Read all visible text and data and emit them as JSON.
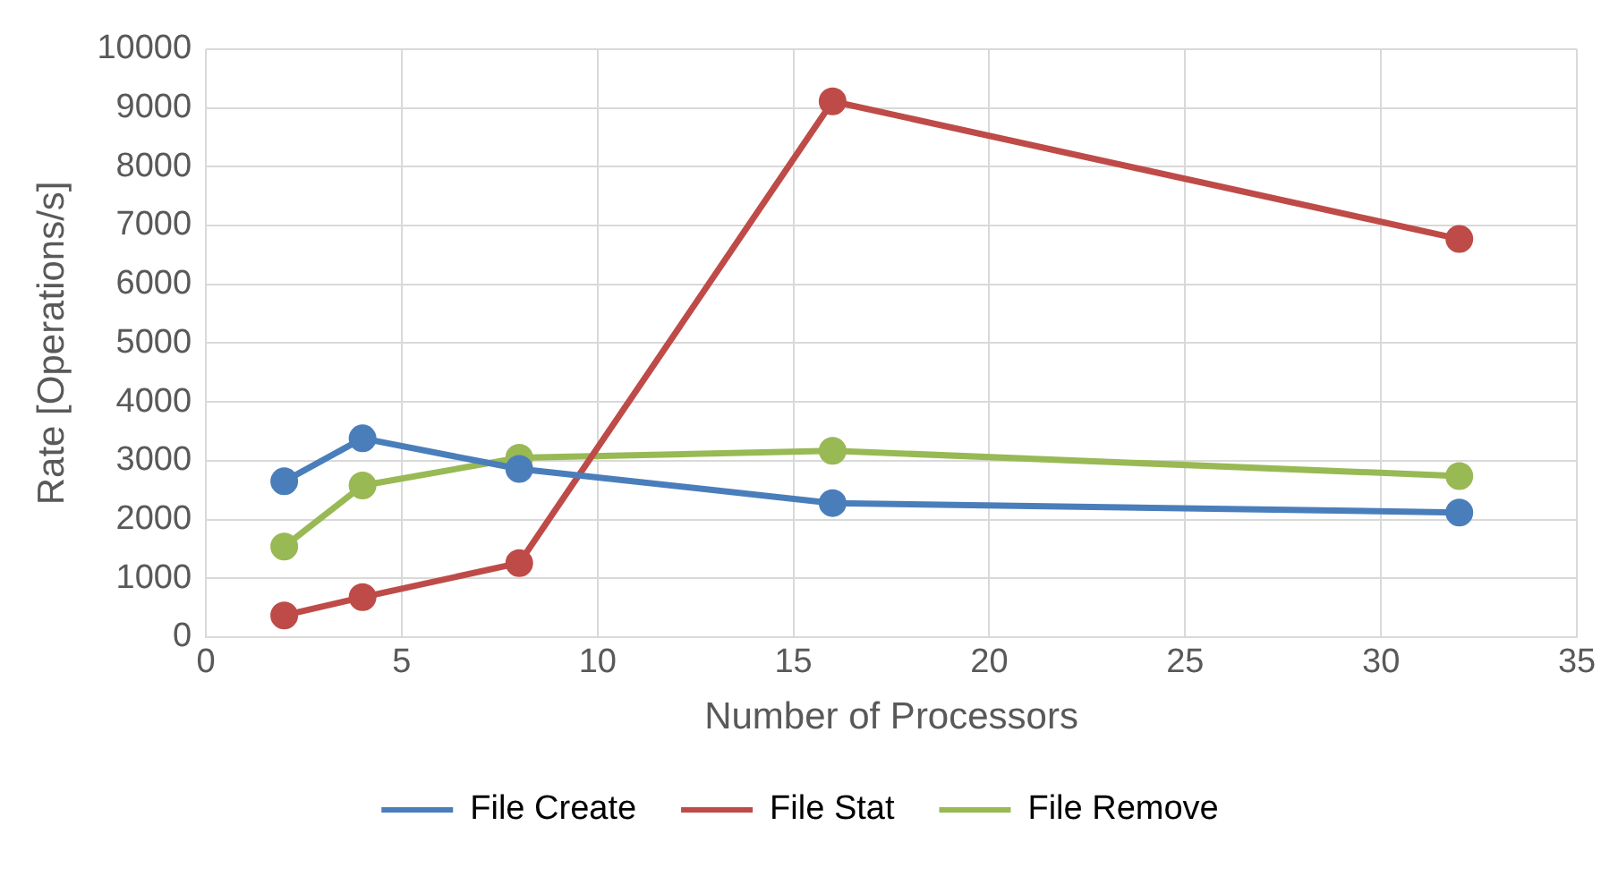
{
  "chart_data": {
    "type": "line",
    "xlabel": "Number of Processors",
    "ylabel": "Rate [Operations/s]",
    "x": [
      2,
      4,
      8,
      16,
      32
    ],
    "series": [
      {
        "name": "File Create",
        "color": "#4a7ebb",
        "values": [
          2650,
          3380,
          2860,
          2280,
          2120
        ]
      },
      {
        "name": "File Stat",
        "color": "#be4b48",
        "values": [
          370,
          680,
          1260,
          9110,
          6770
        ]
      },
      {
        "name": "File Remove",
        "color": "#98b954",
        "values": [
          1540,
          2580,
          3050,
          3170,
          2740
        ]
      }
    ],
    "xlim": [
      0,
      35
    ],
    "xticks": [
      0,
      5,
      10,
      15,
      20,
      25,
      30,
      35
    ],
    "ylim": [
      0,
      10000
    ],
    "yticks": [
      0,
      1000,
      2000,
      3000,
      4000,
      5000,
      6000,
      7000,
      8000,
      9000,
      10000
    ],
    "grid": true,
    "legend": "bottom",
    "marker": "circle",
    "line_style": "solid"
  }
}
